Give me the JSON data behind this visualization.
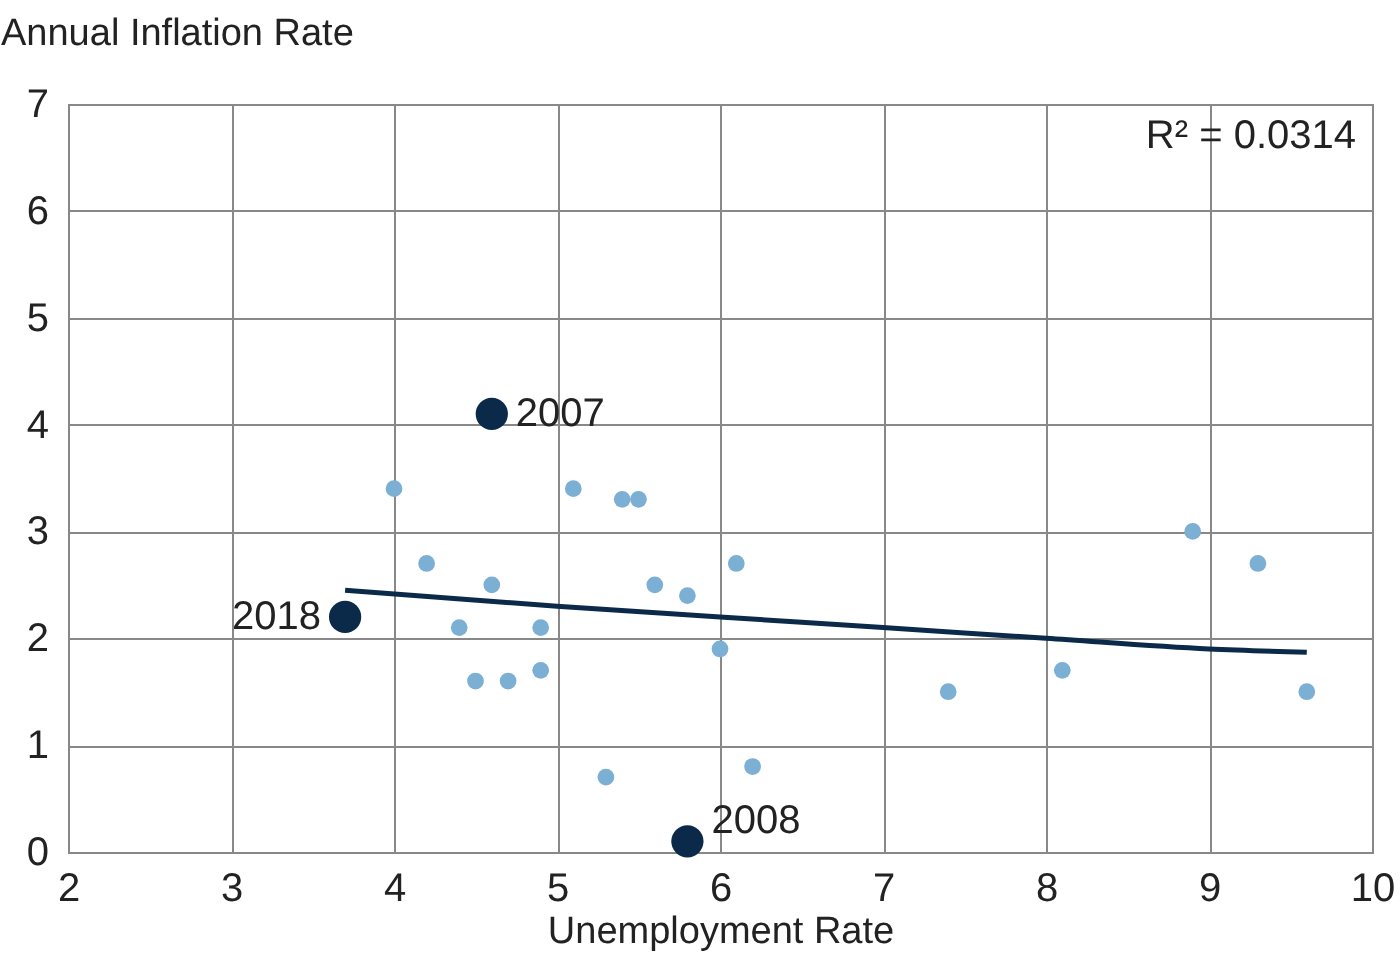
{
  "chart_data": {
    "type": "scatter",
    "ylabel": "Annual Inflation Rate",
    "xlabel": "Unemployment Rate",
    "xlim": [
      2,
      10
    ],
    "xticks": [
      2,
      3,
      4,
      5,
      6,
      7,
      8,
      9,
      10
    ],
    "ylim": [
      0,
      7
    ],
    "yticks": [
      0,
      1,
      2,
      3,
      4,
      5,
      6,
      7
    ],
    "grid": true,
    "marker": "circle",
    "series": [
      {
        "color": "#7bafd4",
        "x": [
          4.0,
          4.2,
          4.4,
          4.5,
          4.6,
          4.7,
          4.9,
          4.9,
          5.1,
          5.3,
          5.4,
          5.5,
          5.6,
          5.8,
          6.0,
          6.1,
          6.2,
          7.4,
          8.1,
          8.9,
          9.3,
          9.6
        ],
        "values": [
          3.4,
          2.7,
          2.1,
          1.6,
          2.5,
          1.6,
          2.1,
          1.7,
          3.4,
          0.7,
          3.3,
          3.3,
          2.5,
          2.4,
          1.9,
          2.7,
          0.8,
          1.5,
          1.7,
          3.0,
          2.7,
          1.5
        ]
      },
      {
        "color": "#0b2a4a",
        "x": [
          4.6,
          3.7,
          5.8
        ],
        "values": [
          4.1,
          2.2,
          0.1
        ]
      },
      {
        "type": "line",
        "color": "#0b2a4a",
        "marker": "none",
        "x": [
          3.7,
          5,
          6,
          7,
          8,
          9,
          9.6
        ],
        "values": [
          2.45,
          2.3,
          2.2,
          2.1,
          2.0,
          1.9,
          1.87
        ]
      }
    ],
    "annotations": [
      {
        "text": "2007",
        "x": 4.6,
        "y": 4.1
      },
      {
        "text": "2018",
        "x": 3.7,
        "y": 2.2
      },
      {
        "text": "2008",
        "x": 5.8,
        "y": 0.1
      },
      "R² = 0.0314"
    ]
  }
}
